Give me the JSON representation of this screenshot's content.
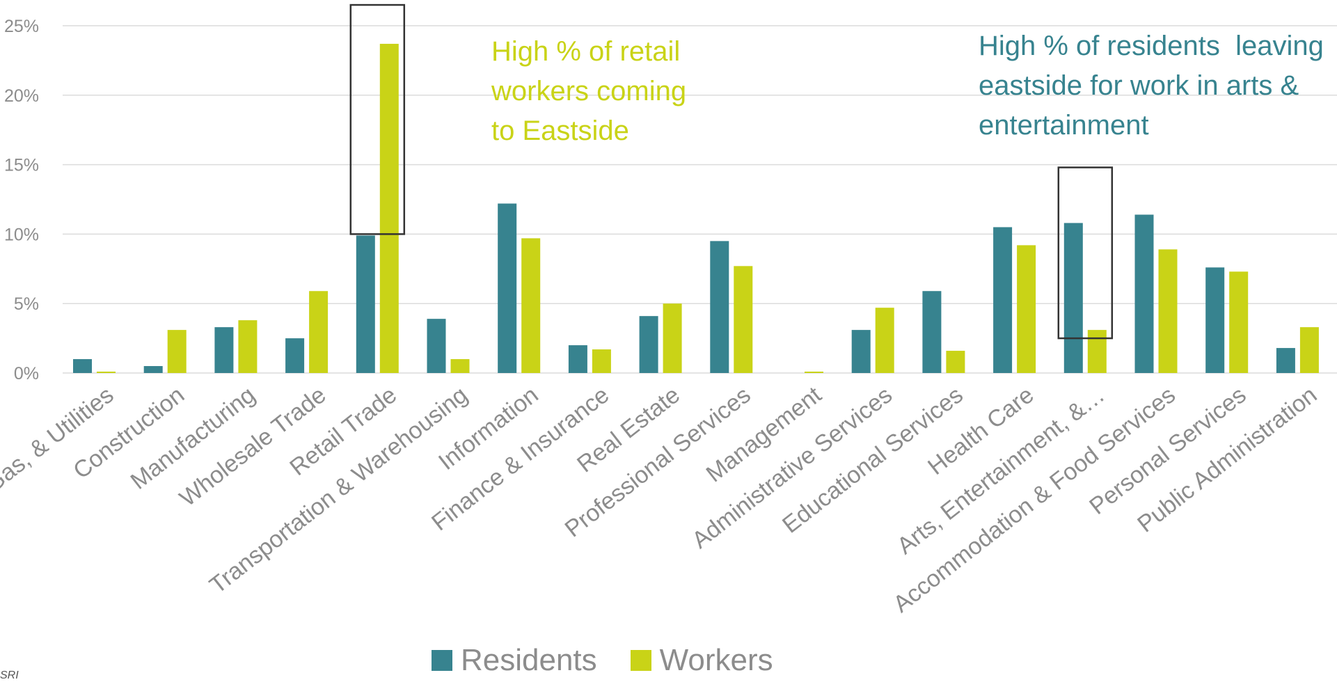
{
  "chart_data": {
    "type": "bar",
    "categories": [
      "Mining, Quarrying, Oil & Gas, & Utilities",
      "Construction",
      "Manufacturing",
      "Wholesale Trade",
      "Retail Trade",
      "Transportation & Warehousing",
      "Information",
      "Finance & Insurance",
      "Real Estate",
      "Professional Services",
      "Management",
      "Administrative Services",
      "Educational Services",
      "Health Care",
      "Arts, Entertainment, & Recreation",
      "Accommodation & Food Services",
      "Personal Services",
      "Public Administration"
    ],
    "category_display": [
      "Mining, Quarrying, Oil & Gas, & Utilities",
      "Construction",
      "Manufacturing",
      "Wholesale Trade",
      "Retail Trade",
      "Transportation & Warehousing",
      "Information",
      "Finance & Insurance",
      "Real Estate",
      "Professional Services",
      "Management",
      "Administrative Services",
      "Educational Services",
      "Health Care",
      "Arts, Entertainment, &…",
      "Accommodation & Food Services",
      "Personal Services",
      "Public Administration"
    ],
    "series": [
      {
        "name": "Residents",
        "color": "#37838f",
        "values": [
          1.0,
          0.5,
          3.3,
          2.5,
          9.9,
          3.9,
          12.2,
          2.0,
          4.1,
          9.5,
          0.0,
          3.1,
          5.9,
          10.5,
          10.8,
          11.4,
          7.6,
          1.8
        ]
      },
      {
        "name": "Workers",
        "color": "#c9d317",
        "values": [
          0.1,
          3.1,
          3.8,
          5.9,
          23.7,
          1.0,
          9.7,
          1.7,
          5.0,
          7.7,
          0.1,
          4.7,
          1.6,
          9.2,
          3.1,
          8.9,
          7.3,
          3.3
        ]
      }
    ],
    "ylim": [
      0,
      25
    ],
    "yticks": [
      0,
      5,
      10,
      15,
      20,
      25
    ],
    "ytick_labels": [
      "0%",
      "5%",
      "10%",
      "15%",
      "20%",
      "25%"
    ],
    "title": "",
    "xlabel": "",
    "ylabel": "",
    "grid": true,
    "legend_position": "bottom-center",
    "highlights": [
      {
        "category_index": 4,
        "y_range": [
          10,
          26.5
        ]
      },
      {
        "category_index": 14,
        "y_range": [
          2.5,
          14.8
        ]
      }
    ],
    "annotations": [
      {
        "text": "High % of retail\nworkers coming\nto Eastside",
        "color": "#c9d317"
      },
      {
        "text": "High % of residents  leaving\neastside for work in arts &\nentertainment",
        "color": "#37838f"
      }
    ]
  },
  "legend": {
    "residents_label": "Residents",
    "workers_label": "Workers"
  },
  "source_note": "SRI"
}
